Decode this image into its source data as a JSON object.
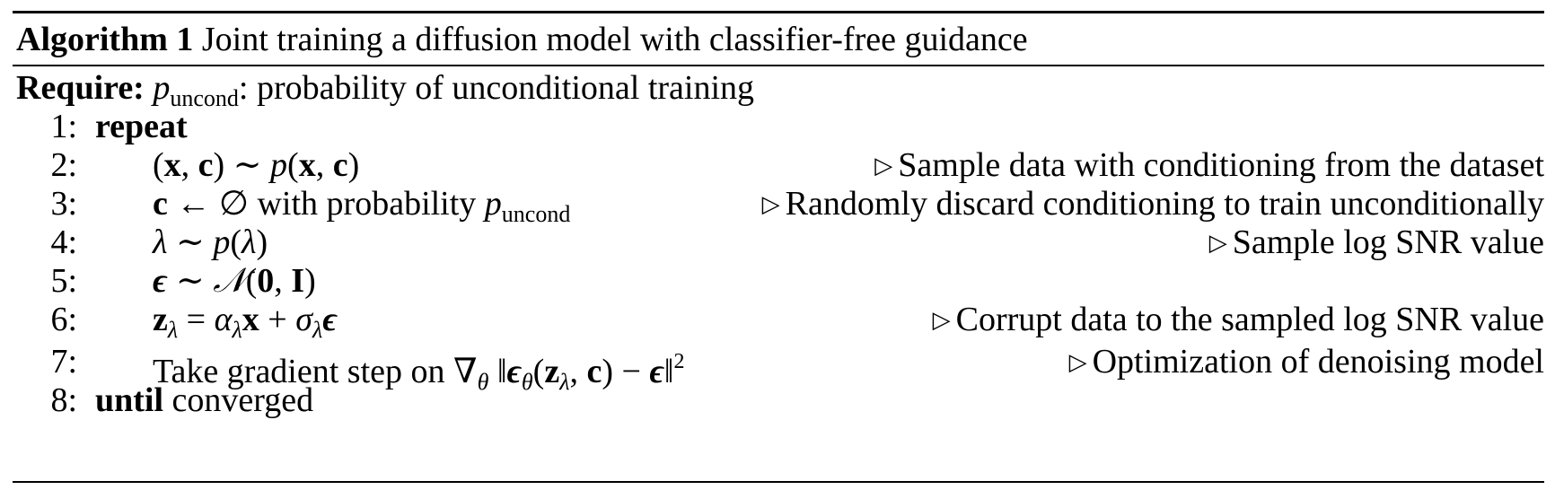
{
  "algorithm": {
    "label": "Algorithm 1",
    "title": "Joint training a diffusion model with classifier-free guidance",
    "require_label": "Require:",
    "require_var": "p",
    "require_var_sub": "uncond",
    "require_text": ": probability of unconditional training"
  },
  "steps": [
    {
      "num": "1:",
      "kw": "repeat"
    },
    {
      "num": "2:",
      "comment": "Sample data with conditioning from the dataset"
    },
    {
      "num": "3:",
      "text": " with probability ",
      "comment": "Randomly discard conditioning to train unconditionally"
    },
    {
      "num": "4:",
      "comment": "Sample log SNR value"
    },
    {
      "num": "5:"
    },
    {
      "num": "6:",
      "comment": "Corrupt data to the sampled log SNR value"
    },
    {
      "num": "7:",
      "text": "Take gradient step on ",
      "comment": "Optimization of denoising model"
    },
    {
      "num": "8:",
      "kw": "until",
      "text": " converged"
    }
  ]
}
